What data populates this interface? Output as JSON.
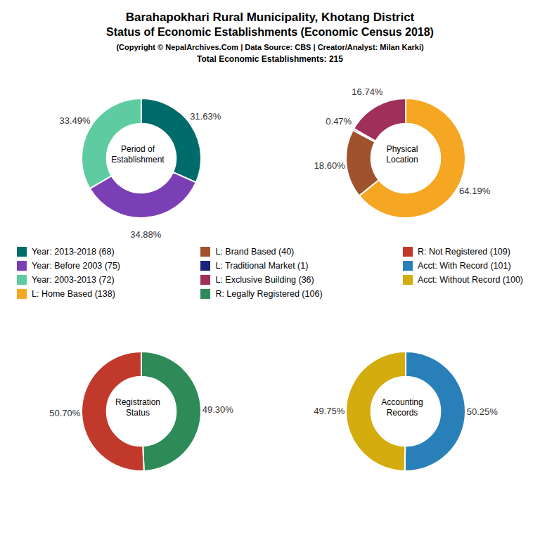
{
  "title": [
    "Barahapokhari Rural Municipality, Khotang District",
    "Status of Economic Establishments (Economic Census 2018)"
  ],
  "annotations": [
    "(Copyright © NepalArchives.Com | Data Source: CBS | Creator/Analyst: Milan Karki)",
    "Total Economic Establishments: 215"
  ],
  "chart_data": [
    {
      "type": "pie",
      "title": "Period of\nEstablishment",
      "categories": [
        "Year: 2013-2018 (68)",
        "Year: Before 2003 (75)",
        "Year: 2003-2013 (72)"
      ],
      "values": [
        31.63,
        34.88,
        33.49
      ],
      "value_labels": [
        "31.63%",
        "34.88%",
        "33.49%"
      ],
      "colors": [
        "#006B6B",
        "#7B3FB5",
        "#5ECBA1"
      ],
      "data_labels": true
    },
    {
      "type": "pie",
      "title": "Physical\nLocation",
      "categories": [
        "L: Home Based (138)",
        "L: Brand Based (40)",
        "L: Traditional Market (1)",
        "L: Exclusive Building (36)"
      ],
      "values": [
        64.19,
        18.6,
        0.47,
        16.74
      ],
      "value_labels": [
        "64.19%",
        "18.60%",
        "0.47%",
        "16.74%"
      ],
      "colors": [
        "#F5A623",
        "#A0522D",
        "#1A237E",
        "#A0305A"
      ],
      "data_labels": true
    },
    {
      "type": "pie",
      "title": "Registration\nStatus",
      "categories": [
        "R: Legally Registered (106)",
        "R: Not Registered (109)"
      ],
      "values": [
        49.3,
        50.7
      ],
      "value_labels": [
        "49.30%",
        "50.70%"
      ],
      "colors": [
        "#2E8B57",
        "#C0392B"
      ],
      "data_labels": true
    },
    {
      "type": "pie",
      "title": "Accounting\nRecords",
      "categories": [
        "Acct: With Record (101)",
        "Acct: Without Record (100)"
      ],
      "values": [
        50.25,
        49.75
      ],
      "value_labels": [
        "50.25%",
        "49.75%"
      ],
      "colors": [
        "#2980B9",
        "#D4AC0D"
      ],
      "data_labels": true
    }
  ]
}
